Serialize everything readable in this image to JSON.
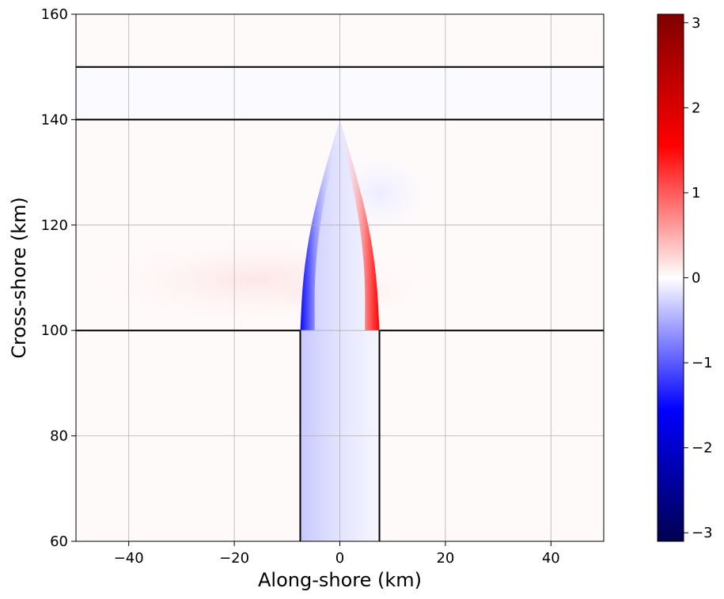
{
  "chart_data": {
    "type": "heatmap",
    "xlabel": "Along-shore (km)",
    "ylabel": "Cross-shore (km)",
    "xlim": [
      -50,
      50
    ],
    "ylim": [
      60,
      160
    ],
    "xticks": [
      -40,
      -20,
      0,
      20,
      40
    ],
    "xtick_labels": [
      "−40",
      "−20",
      "0",
      "20",
      "40"
    ],
    "yticks": [
      60,
      80,
      100,
      120,
      140,
      160
    ],
    "ytick_labels": [
      "60",
      "80",
      "100",
      "120",
      "140",
      "160"
    ],
    "grid": true,
    "colormap": "seismic",
    "colorbar": {
      "range": [
        -3.1,
        3.1
      ],
      "ticks": [
        -3,
        -2,
        -1,
        0,
        1,
        2,
        3
      ],
      "tick_labels": [
        "−3",
        "−2",
        "−1",
        "0",
        "1",
        "2",
        "3"
      ],
      "colors": [
        "#000050",
        "#0000ff",
        "#ffffff",
        "#ff0000",
        "#800000"
      ]
    },
    "contour_lines": [
      {
        "kind": "horizontal",
        "y": 150,
        "x": [
          -50,
          50
        ]
      },
      {
        "kind": "horizontal",
        "y": 140,
        "x": [
          -50,
          50
        ]
      },
      {
        "kind": "horizontal",
        "y": 100,
        "x": [
          -50,
          -7.5
        ]
      },
      {
        "kind": "horizontal",
        "y": 100,
        "x": [
          7.5,
          50
        ]
      },
      {
        "kind": "vertical",
        "x": -7.5,
        "y": [
          60,
          100
        ]
      },
      {
        "kind": "vertical",
        "x": 7.5,
        "y": [
          60,
          100
        ]
      }
    ],
    "field_features": {
      "jet_left_edge": [
        [
          -7.5,
          60
        ],
        [
          -7.5,
          100
        ],
        [
          -7,
          110
        ],
        [
          -5.5,
          120
        ],
        [
          -3,
          130
        ],
        [
          0,
          140
        ]
      ],
      "jet_right_edge": [
        [
          7.5,
          60
        ],
        [
          7.5,
          100
        ],
        [
          7,
          110
        ],
        [
          5.5,
          120
        ],
        [
          3,
          130
        ],
        [
          0,
          140
        ]
      ],
      "left_edge_value": -1.8,
      "right_edge_value": 1.8,
      "interior_inlet_value": -0.35,
      "background_value": 0.0,
      "positive_plume_value": 0.12,
      "plume_center_y": 112
    }
  }
}
